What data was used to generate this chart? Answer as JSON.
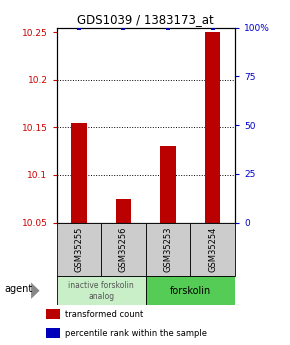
{
  "title": "GDS1039 / 1383173_at",
  "samples": [
    "GSM35255",
    "GSM35256",
    "GSM35253",
    "GSM35254"
  ],
  "red_values": [
    10.155,
    10.075,
    10.13,
    10.25
  ],
  "blue_values": [
    100,
    100,
    100,
    100
  ],
  "ylim_left": [
    10.05,
    10.255
  ],
  "ylim_right": [
    0,
    100
  ],
  "yticks_left": [
    10.05,
    10.1,
    10.15,
    10.2,
    10.25
  ],
  "yticks_right": [
    0,
    25,
    50,
    75,
    100
  ],
  "groups": [
    {
      "label": "inactive forskolin\nanalog",
      "color": "#c8efc8",
      "samples": [
        "GSM35255",
        "GSM35256"
      ]
    },
    {
      "label": "forskolin",
      "color": "#55cc55",
      "samples": [
        "GSM35253",
        "GSM35254"
      ]
    }
  ],
  "bar_color": "#bb0000",
  "blue_marker_color": "#0000bb",
  "bar_width": 0.35,
  "baseline": 10.05,
  "background_color": "#ffffff",
  "left_tick_color": "#cc0000",
  "right_tick_color": "#0000cc",
  "agent_label": "agent",
  "sample_box_color": "#cccccc",
  "legend_items": [
    {
      "label": "transformed count",
      "color": "#bb0000"
    },
    {
      "label": "percentile rank within the sample",
      "color": "#0000bb"
    }
  ]
}
